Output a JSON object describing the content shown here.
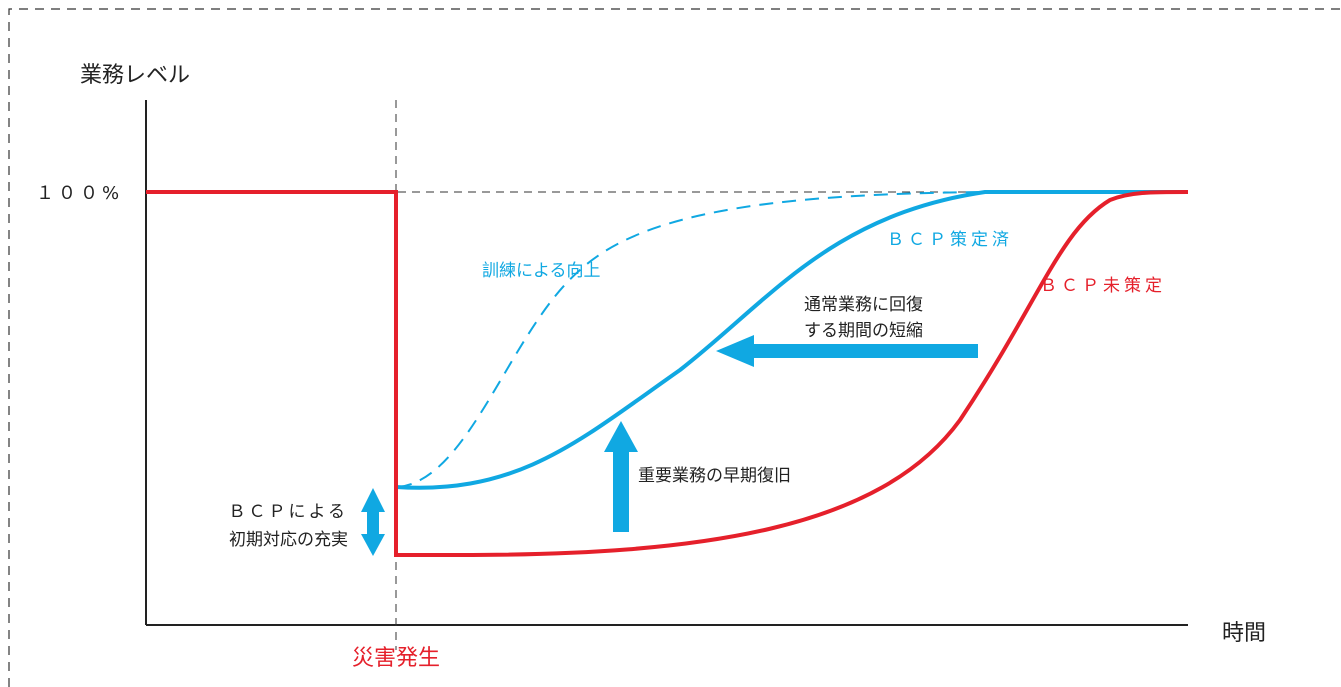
{
  "diagram": {
    "y_axis_label": "業務レベル",
    "x_axis_label": "時間",
    "level_100": "１００%",
    "disaster_label": "災害発生",
    "bcp_done_label": "ＢＣＰ策定済",
    "bcp_none_label": "ＢＣＰ未策定",
    "training_label": "訓練による向上",
    "shorten_label_line1": "通常業務に回",
    "shorten_label_line2": "復",
    "shorten_label_line3": "する期間の短縮",
    "early_recovery_label": "重要業務の早期復旧",
    "initial_label_line1": "ＢＣＰによる",
    "initial_label_line2": "初期対応の充実"
  },
  "colors": {
    "red": "#e5202b",
    "blue": "#10a8e2",
    "black": "#222222",
    "dash": "#333333"
  }
}
